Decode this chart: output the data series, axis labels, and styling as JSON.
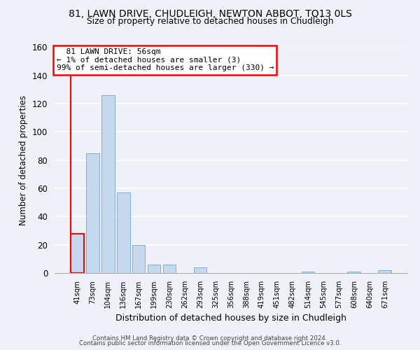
{
  "title1": "81, LAWN DRIVE, CHUDLEIGH, NEWTON ABBOT, TQ13 0LS",
  "title2": "Size of property relative to detached houses in Chudleigh",
  "xlabel": "Distribution of detached houses by size in Chudleigh",
  "ylabel": "Number of detached properties",
  "bar_labels": [
    "41sqm",
    "73sqm",
    "104sqm",
    "136sqm",
    "167sqm",
    "199sqm",
    "230sqm",
    "262sqm",
    "293sqm",
    "325sqm",
    "356sqm",
    "388sqm",
    "419sqm",
    "451sqm",
    "482sqm",
    "514sqm",
    "545sqm",
    "577sqm",
    "608sqm",
    "640sqm",
    "671sqm"
  ],
  "bar_values": [
    28,
    85,
    126,
    57,
    20,
    6,
    6,
    0,
    4,
    0,
    0,
    0,
    0,
    0,
    0,
    1,
    0,
    0,
    1,
    0,
    2
  ],
  "bar_color": "#c5d8ed",
  "bar_edge_color": "#7aafd4",
  "highlight_bar_index": 0,
  "highlight_edge_color": "red",
  "ylim": [
    0,
    160
  ],
  "yticks": [
    0,
    20,
    40,
    60,
    80,
    100,
    120,
    140,
    160
  ],
  "annotation_title": "81 LAWN DRIVE: 56sqm",
  "annotation_line1": "← 1% of detached houses are smaller (3)",
  "annotation_line2": "99% of semi-detached houses are larger (330) →",
  "annotation_box_color": "white",
  "annotation_box_edge": "red",
  "footer1": "Contains HM Land Registry data © Crown copyright and database right 2024.",
  "footer2": "Contains public sector information licensed under the Open Government Licence v3.0.",
  "background_color": "#eef2f8"
}
